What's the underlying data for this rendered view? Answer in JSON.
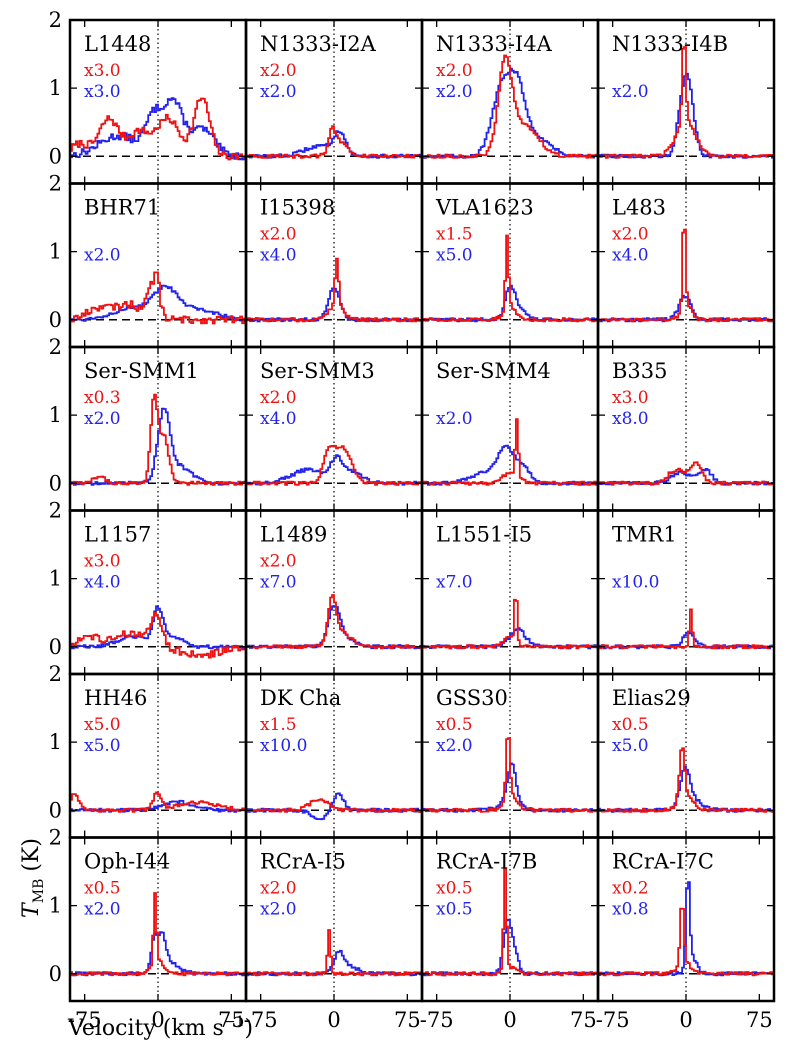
{
  "chart_data": {
    "type": "line",
    "title": "",
    "xlabel": "Velocity (km s",
    "xlabel_sup": "−1",
    "xlabel_close": ")",
    "ylabel": "T",
    "ylabel_sub": "MB",
    "ylabel_unit": " (K)",
    "xlim": [
      -90,
      90
    ],
    "ylim": [
      -0.4,
      2
    ],
    "xticks": [
      -75,
      0,
      75
    ],
    "xtick_labels": [
      "-75",
      "0",
      "75"
    ],
    "yticks": [
      0,
      1,
      2
    ],
    "ytick_labels": [
      "0",
      "1",
      "2"
    ],
    "series_colors": {
      "red": "#ee1111",
      "blue": "#2222ee"
    },
    "panels": [
      {
        "name": "L1448",
        "red_scale": "x3.0",
        "blue_scale": "x3.0",
        "red": [
          {
            "v": -80,
            "a": 0.18,
            "w": 9
          },
          {
            "v": -50,
            "a": 0.55,
            "w": 10
          },
          {
            "v": -20,
            "a": 0.35,
            "w": 10
          },
          {
            "v": 10,
            "a": 0.55,
            "w": 12
          },
          {
            "v": 45,
            "a": 0.85,
            "w": 8
          }
        ],
        "blue": [
          {
            "v": -40,
            "a": 0.3,
            "w": 20
          },
          {
            "v": -5,
            "a": 0.5,
            "w": 8
          },
          {
            "v": 15,
            "a": 0.8,
            "w": 10
          },
          {
            "v": 45,
            "a": 0.4,
            "w": 12
          }
        ]
      },
      {
        "name": "N1333-I2A",
        "red_scale": "x2.0",
        "blue_scale": "x2.0",
        "red": [
          {
            "v": -2,
            "a": 0.3,
            "w": 3
          },
          {
            "v": 5,
            "a": 0.22,
            "w": 8
          }
        ],
        "blue": [
          {
            "v": -15,
            "a": 0.15,
            "w": 15
          },
          {
            "v": 6,
            "a": 0.32,
            "w": 6
          }
        ]
      },
      {
        "name": "N1333-I4A",
        "red_scale": "x2.0",
        "blue_scale": "x2.0",
        "red": [
          {
            "v": -5,
            "a": 1.3,
            "w": 7
          },
          {
            "v": 15,
            "a": 0.45,
            "w": 14
          }
        ],
        "blue": [
          {
            "v": -8,
            "a": 1.0,
            "w": 10
          },
          {
            "v": 8,
            "a": 0.75,
            "w": 8
          },
          {
            "v": 25,
            "a": 0.3,
            "w": 15
          }
        ]
      },
      {
        "name": "N1333-I4B",
        "red_scale": "",
        "blue_scale": "x2.0",
        "red": [
          {
            "v": -2,
            "a": 1.3,
            "w": 1.8
          },
          {
            "v": 0,
            "a": 0.5,
            "w": 10
          }
        ],
        "blue": [
          {
            "v": 3,
            "a": 0.75,
            "w": 6
          },
          {
            "v": -3,
            "a": 0.6,
            "w": 6
          }
        ]
      },
      {
        "name": "BHR71",
        "red_scale": "",
        "blue_scale": "x2.0",
        "red": [
          {
            "v": -60,
            "a": 0.18,
            "w": 12
          },
          {
            "v": -30,
            "a": 0.22,
            "w": 12
          },
          {
            "v": -5,
            "a": 0.5,
            "w": 6
          },
          {
            "v": -1,
            "a": 0.3,
            "w": 2
          }
        ],
        "blue": [
          {
            "v": -25,
            "a": 0.18,
            "w": 20
          },
          {
            "v": 8,
            "a": 0.4,
            "w": 12
          },
          {
            "v": 40,
            "a": 0.15,
            "w": 20
          }
        ]
      },
      {
        "name": "I15398",
        "red_scale": "x2.0",
        "blue_scale": "x4.0",
        "red": [
          {
            "v": 3,
            "a": 0.72,
            "w": 1.8
          },
          {
            "v": 2,
            "a": 0.2,
            "w": 8
          }
        ],
        "blue": [
          {
            "v": 0,
            "a": 0.45,
            "w": 6
          }
        ]
      },
      {
        "name": "VLA1623",
        "red_scale": "x1.5",
        "blue_scale": "x5.0",
        "red": [
          {
            "v": -3,
            "a": 1.05,
            "w": 1.5
          },
          {
            "v": 0,
            "a": 0.2,
            "w": 6
          }
        ],
        "blue": [
          {
            "v": 0,
            "a": 0.4,
            "w": 5
          },
          {
            "v": 8,
            "a": 0.15,
            "w": 8
          }
        ]
      },
      {
        "name": "L483",
        "red_scale": "x2.0",
        "blue_scale": "x4.0",
        "red": [
          {
            "v": -2,
            "a": 1.4,
            "w": 1.4
          },
          {
            "v": 0,
            "a": 0.25,
            "w": 5
          }
        ],
        "blue": [
          {
            "v": -1,
            "a": 0.35,
            "w": 6
          }
        ]
      },
      {
        "name": "Ser-SMM1",
        "red_scale": "x0.3",
        "blue_scale": "x2.0",
        "red": [
          {
            "v": -60,
            "a": 0.1,
            "w": 6
          },
          {
            "v": -4,
            "a": 1.2,
            "w": 3.5
          },
          {
            "v": 6,
            "a": 0.7,
            "w": 5
          }
        ],
        "blue": [
          {
            "v": 6,
            "a": 0.95,
            "w": 6
          },
          {
            "v": 20,
            "a": 0.25,
            "w": 14
          }
        ]
      },
      {
        "name": "Ser-SMM3",
        "red_scale": "x2.0",
        "blue_scale": "x4.0",
        "red": [
          {
            "v": -5,
            "a": 0.45,
            "w": 6
          },
          {
            "v": 10,
            "a": 0.5,
            "w": 8
          }
        ],
        "blue": [
          {
            "v": -25,
            "a": 0.2,
            "w": 18
          },
          {
            "v": 3,
            "a": 0.3,
            "w": 6
          },
          {
            "v": 20,
            "a": 0.15,
            "w": 10
          }
        ]
      },
      {
        "name": "Ser-SMM4",
        "red_scale": "",
        "blue_scale": "x2.0",
        "red": [
          {
            "v": 7,
            "a": 0.85,
            "w": 1.5
          },
          {
            "v": 0,
            "a": 0.15,
            "w": 8
          }
        ],
        "blue": [
          {
            "v": -5,
            "a": 0.45,
            "w": 8
          },
          {
            "v": -25,
            "a": 0.15,
            "w": 15
          },
          {
            "v": 12,
            "a": 0.25,
            "w": 8
          }
        ]
      },
      {
        "name": "B335",
        "red_scale": "x3.0",
        "blue_scale": "x8.0",
        "red": [
          {
            "v": -10,
            "a": 0.2,
            "w": 8
          },
          {
            "v": 10,
            "a": 0.3,
            "w": 6
          }
        ],
        "blue": [
          {
            "v": -5,
            "a": 0.15,
            "w": 10
          },
          {
            "v": 20,
            "a": 0.2,
            "w": 6
          }
        ]
      },
      {
        "name": "L1157",
        "red_scale": "x3.0",
        "blue_scale": "x4.0",
        "red": [
          {
            "v": -70,
            "a": 0.15,
            "w": 10
          },
          {
            "v": -30,
            "a": 0.2,
            "w": 15
          },
          {
            "v": -2,
            "a": 0.45,
            "w": 6
          },
          {
            "v": 45,
            "a": -0.12,
            "w": 20
          }
        ],
        "blue": [
          {
            "v": -25,
            "a": 0.15,
            "w": 15
          },
          {
            "v": 0,
            "a": 0.5,
            "w": 5
          },
          {
            "v": 15,
            "a": 0.15,
            "w": 10
          }
        ]
      },
      {
        "name": "L1489",
        "red_scale": "x2.0",
        "blue_scale": "x7.0",
        "red": [
          {
            "v": -2,
            "a": 0.65,
            "w": 4
          },
          {
            "v": 8,
            "a": 0.2,
            "w": 10
          }
        ],
        "blue": [
          {
            "v": 0,
            "a": 0.55,
            "w": 6
          },
          {
            "v": 12,
            "a": 0.12,
            "w": 10
          }
        ]
      },
      {
        "name": "L1551-I5",
        "red_scale": "",
        "blue_scale": "x7.0",
        "red": [
          {
            "v": 6,
            "a": 0.85,
            "w": 1.2
          },
          {
            "v": 0,
            "a": 0.15,
            "w": 6
          }
        ],
        "blue": [
          {
            "v": 8,
            "a": 0.25,
            "w": 8
          }
        ]
      },
      {
        "name": "TMR1",
        "red_scale": "",
        "blue_scale": "x10.0",
        "red": [
          {
            "v": 5,
            "a": 0.55,
            "w": 1.5
          }
        ],
        "blue": [
          {
            "v": 3,
            "a": 0.2,
            "w": 6
          }
        ]
      },
      {
        "name": "HH46",
        "red_scale": "x5.0",
        "blue_scale": "x5.0",
        "red": [
          {
            "v": -85,
            "a": 0.25,
            "w": 4
          },
          {
            "v": -1,
            "a": 0.25,
            "w": 4
          },
          {
            "v": 40,
            "a": 0.12,
            "w": 20
          }
        ],
        "blue": [
          {
            "v": 20,
            "a": 0.12,
            "w": 15
          }
        ]
      },
      {
        "name": "DK Cha",
        "red_scale": "x1.5",
        "blue_scale": "x10.0",
        "red": [
          {
            "v": -15,
            "a": 0.15,
            "w": 10
          }
        ],
        "blue": [
          {
            "v": -15,
            "a": -0.12,
            "w": 8
          },
          {
            "v": 5,
            "a": 0.25,
            "w": 5
          }
        ]
      },
      {
        "name": "GSS30",
        "red_scale": "x0.5",
        "blue_scale": "x2.0",
        "red": [
          {
            "v": -2,
            "a": 0.95,
            "w": 1.8
          },
          {
            "v": 0,
            "a": 0.25,
            "w": 6
          }
        ],
        "blue": [
          {
            "v": 2,
            "a": 0.55,
            "w": 4
          },
          {
            "v": 0,
            "a": 0.15,
            "w": 10
          }
        ]
      },
      {
        "name": "Elias29",
        "red_scale": "x0.5",
        "blue_scale": "x5.0",
        "red": [
          {
            "v": -4,
            "a": 0.8,
            "w": 2.5
          },
          {
            "v": 0,
            "a": 0.2,
            "w": 8
          }
        ],
        "blue": [
          {
            "v": -1,
            "a": 0.5,
            "w": 5
          },
          {
            "v": 6,
            "a": 0.15,
            "w": 10
          }
        ]
      },
      {
        "name": "Oph-I44",
        "red_scale": "x0.5",
        "blue_scale": "x2.0",
        "red": [
          {
            "v": -3,
            "a": 1.0,
            "w": 1.5
          },
          {
            "v": 0,
            "a": 0.2,
            "w": 6
          }
        ],
        "blue": [
          {
            "v": -4,
            "a": 0.45,
            "w": 3
          },
          {
            "v": 4,
            "a": 0.5,
            "w": 4
          },
          {
            "v": 12,
            "a": 0.15,
            "w": 10
          }
        ]
      },
      {
        "name": "RCrA-I5",
        "red_scale": "x2.0",
        "blue_scale": "x2.0",
        "red": [
          {
            "v": -5,
            "a": 0.65,
            "w": 1.5
          }
        ],
        "blue": [
          {
            "v": 5,
            "a": 0.3,
            "w": 5
          },
          {
            "v": 18,
            "a": 0.1,
            "w": 8
          }
        ]
      },
      {
        "name": "RCrA-I7B",
        "red_scale": "x0.5",
        "blue_scale": "x0.5",
        "red": [
          {
            "v": -5,
            "a": 1.45,
            "w": 1.5
          },
          {
            "v": 0,
            "a": 0.1,
            "w": 6
          }
        ],
        "blue": [
          {
            "v": -3,
            "a": 0.6,
            "w": 4
          },
          {
            "v": 3,
            "a": 0.35,
            "w": 5
          }
        ]
      },
      {
        "name": "RCrA-I7C",
        "red_scale": "x0.2",
        "blue_scale": "x0.8",
        "red": [
          {
            "v": -4,
            "a": 0.9,
            "w": 1.8
          },
          {
            "v": -2,
            "a": 0.2,
            "w": 6
          }
        ],
        "blue": [
          {
            "v": 2,
            "a": 1.3,
            "w": 1.8
          },
          {
            "v": 6,
            "a": 0.25,
            "w": 5
          }
        ]
      }
    ]
  }
}
